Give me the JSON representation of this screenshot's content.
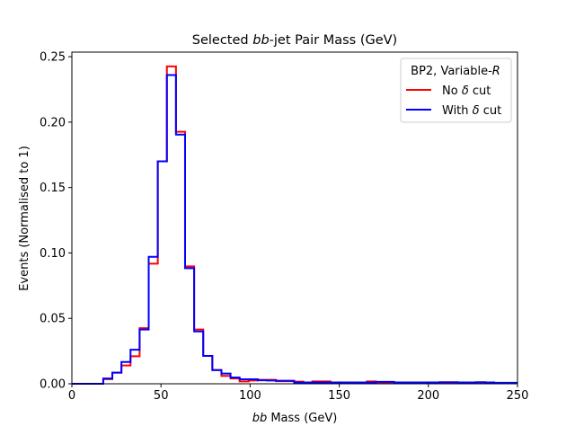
{
  "chart_data": {
    "type": "step-histogram",
    "title_parts": [
      "Selected ",
      "bb",
      "-jet Pair Mass (GeV)"
    ],
    "xlabel_parts": [
      "bb",
      " Mass (GeV)"
    ],
    "ylabel": "Events (Normalised to 1)",
    "xlim": [
      0,
      250
    ],
    "ylim": [
      0,
      0.2535
    ],
    "xticks": [
      0,
      50,
      100,
      150,
      200,
      250
    ],
    "xtick_labels": [
      "0",
      "50",
      "100",
      "150",
      "200",
      "250"
    ],
    "yticks": [
      0,
      0.05,
      0.1,
      0.15,
      0.2,
      0.25
    ],
    "ytick_labels": [
      "0.00",
      "0.05",
      "0.10",
      "0.15",
      "0.20",
      "0.25"
    ],
    "grid": false,
    "legend": {
      "position": "top-right",
      "title_parts": [
        "BP2, Variable-",
        "R"
      ],
      "entries": [
        {
          "parts": [
            "No ",
            "δ",
            " cut"
          ]
        },
        {
          "parts": [
            "With ",
            "δ",
            " cut"
          ]
        }
      ]
    },
    "bin_start": 17.6,
    "bin_width": 5.1,
    "series": [
      {
        "name": "No δ cut",
        "color": "#ff0000",
        "values": [
          0.0035,
          0.0085,
          0.014,
          0.021,
          0.0425,
          0.0918,
          0.17,
          0.2426,
          0.1926,
          0.0897,
          0.0415,
          0.0213,
          0.0105,
          0.006,
          0.004,
          0.0018,
          0.0025,
          0.003,
          0.003,
          0.002,
          0.002,
          0.0016,
          0.001,
          0.0018,
          0.0018,
          0.001,
          0.001,
          0.001,
          0.001,
          0.0018,
          0.001,
          0.001,
          0.001,
          0.001,
          0.001,
          0.001,
          0.001,
          0.0008,
          0.0008,
          0.0008,
          0.0008,
          0.001,
          0.0008,
          0.0005,
          0.0005,
          0.0005
        ]
      },
      {
        "name": "With δ cut",
        "color": "#0000ff",
        "values": [
          0.004,
          0.0085,
          0.0167,
          0.026,
          0.0415,
          0.097,
          0.17,
          0.236,
          0.1905,
          0.0884,
          0.04,
          0.0213,
          0.0105,
          0.0078,
          0.0048,
          0.0034,
          0.0034,
          0.0027,
          0.0025,
          0.0023,
          0.0023,
          0.001,
          0.001,
          0.001,
          0.001,
          0.001,
          0.001,
          0.001,
          0.001,
          0.001,
          0.0015,
          0.0015,
          0.001,
          0.001,
          0.001,
          0.001,
          0.001,
          0.0012,
          0.0012,
          0.001,
          0.001,
          0.0012,
          0.001,
          0.0008,
          0.0008,
          0.0008
        ]
      }
    ]
  }
}
